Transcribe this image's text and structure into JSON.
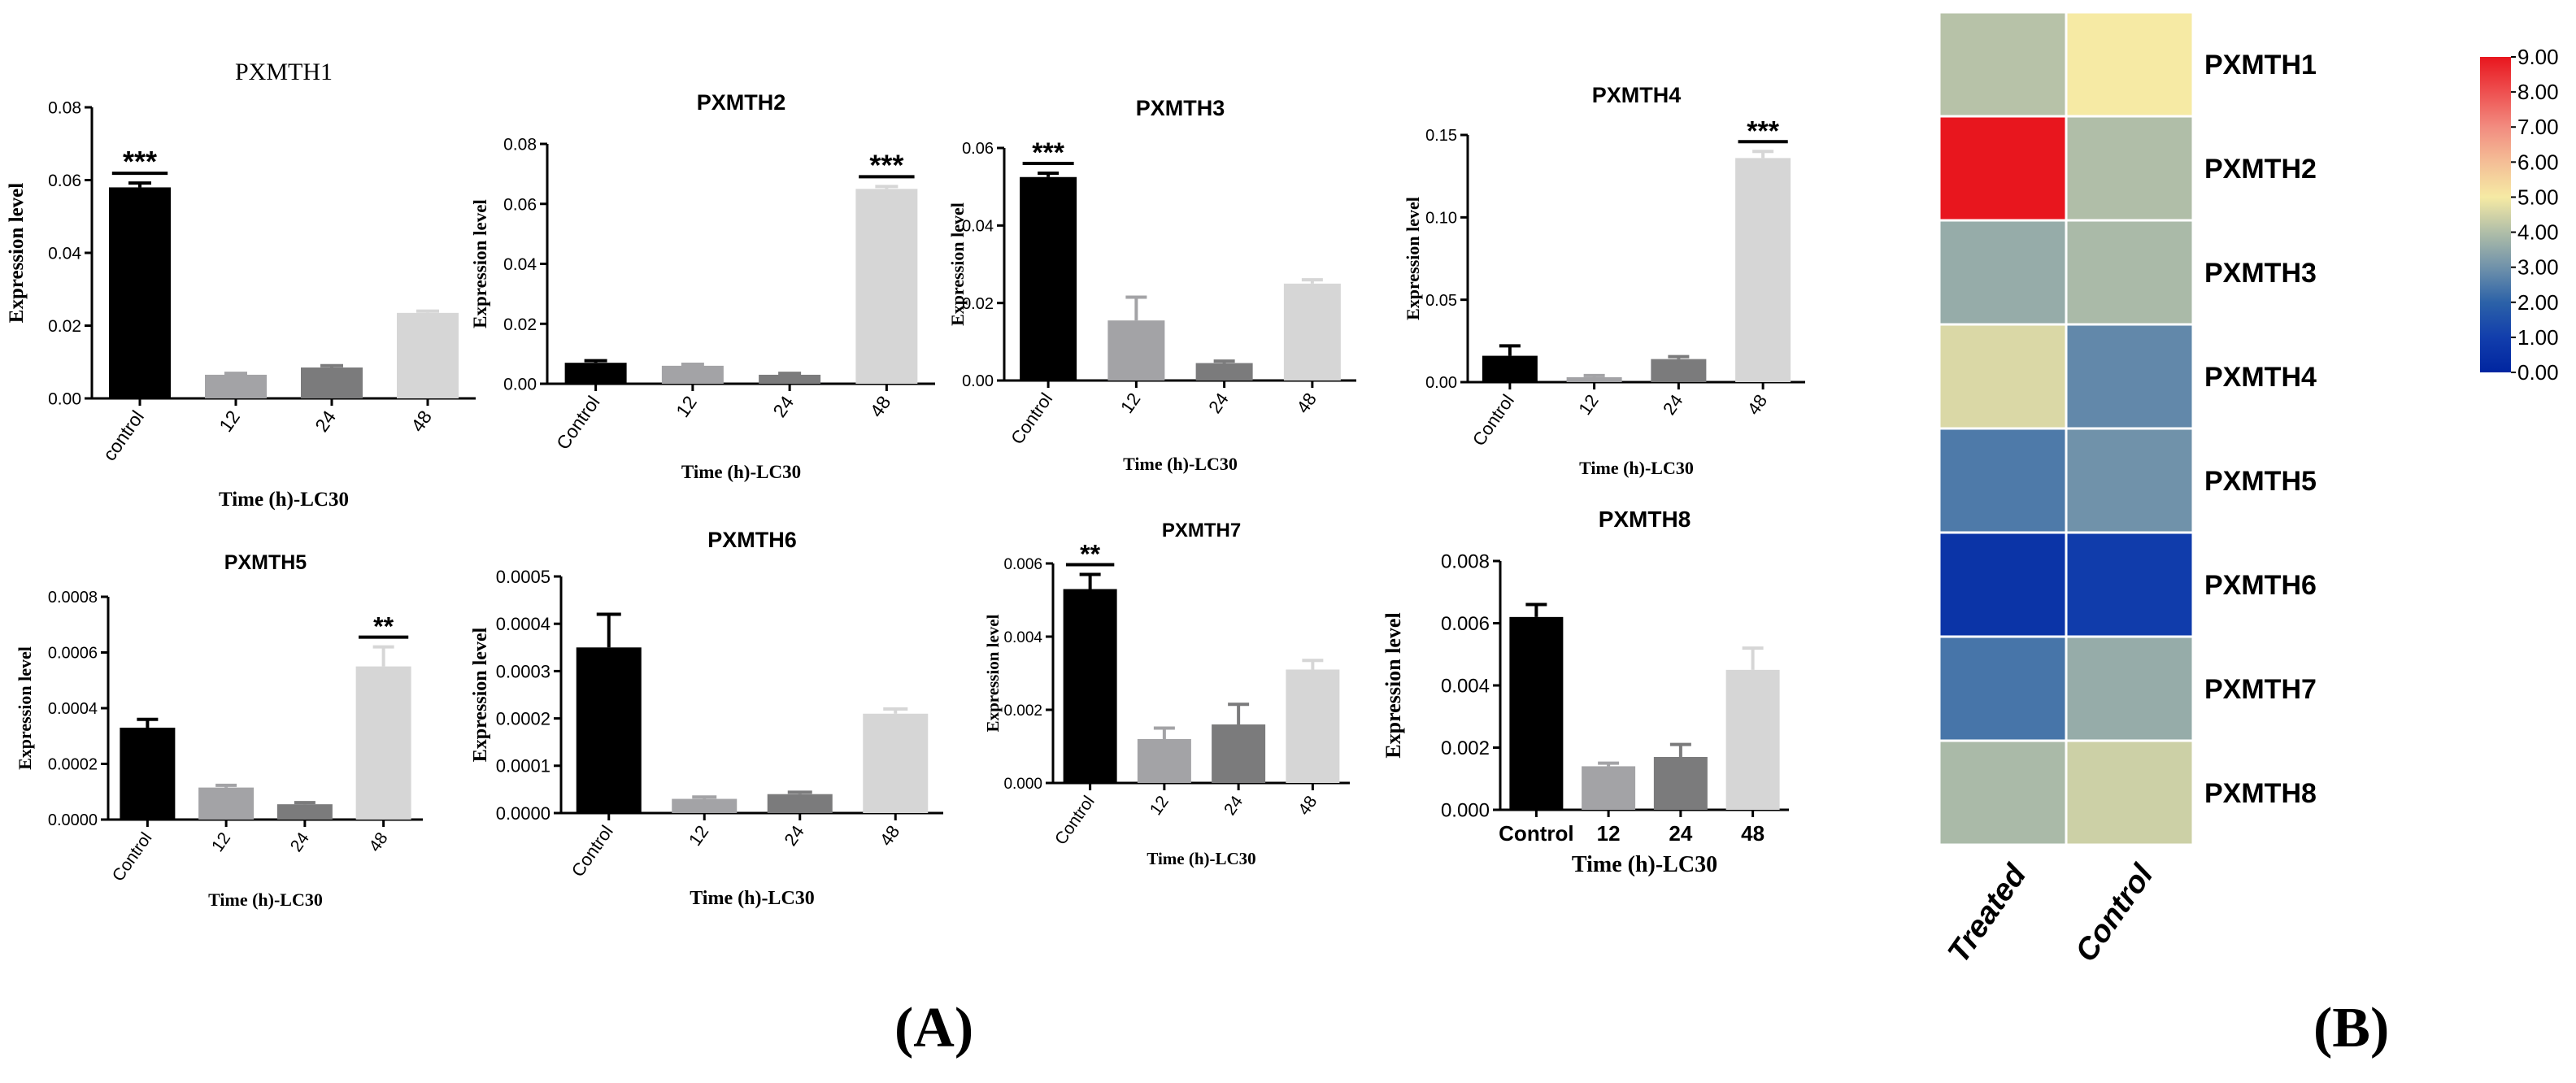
{
  "panels": {
    "a": "(A)",
    "b": "(B)"
  },
  "chart_data": [
    {
      "type": "bar",
      "title": "PXMTH1",
      "categories": [
        "control",
        "12",
        "24",
        "48"
      ],
      "values": [
        0.058,
        0.0065,
        0.0085,
        0.0235
      ],
      "errors": [
        0.0012,
        0.0004,
        0.0005,
        0.0005
      ],
      "ylim": [
        0,
        0.08
      ],
      "yticks": [
        "0.00",
        "0.02",
        "0.04",
        "0.06",
        "0.08"
      ],
      "ytick_values": [
        0,
        0.02,
        0.04,
        0.06,
        0.08
      ],
      "ylabel": "Expression level",
      "xlabel": "Time (h)-LC30",
      "significance": [
        {
          "index": 0,
          "label": "***"
        }
      ],
      "colors": [
        "#000000",
        "#a3a3a6",
        "#7b7b7c",
        "#d6d6d6"
      ]
    },
    {
      "type": "bar",
      "title": "PXMTH2",
      "categories": [
        "Control",
        "12",
        "24",
        "48"
      ],
      "values": [
        0.007,
        0.006,
        0.003,
        0.065
      ],
      "errors": [
        0.0007,
        0.0005,
        0.0005,
        0.0008
      ],
      "ylim": [
        0,
        0.08
      ],
      "yticks": [
        "0.00",
        "0.02",
        "0.04",
        "0.06",
        "0.08"
      ],
      "ytick_values": [
        0,
        0.02,
        0.04,
        0.06,
        0.08
      ],
      "ylabel": "Expression level",
      "xlabel": "Time (h)-LC30",
      "significance": [
        {
          "index": 3,
          "label": "***"
        }
      ],
      "colors": [
        "#000000",
        "#a3a3a6",
        "#7b7b7c",
        "#d6d6d6"
      ]
    },
    {
      "type": "bar",
      "title": "PXMTH3",
      "categories": [
        "Control",
        "12",
        "24",
        "48"
      ],
      "values": [
        0.0525,
        0.0155,
        0.0045,
        0.025
      ],
      "errors": [
        0.001,
        0.006,
        0.0005,
        0.001
      ],
      "ylim": [
        0,
        0.06
      ],
      "yticks": [
        "0.00",
        "0.02",
        "0.04",
        "0.06"
      ],
      "ytick_values": [
        0,
        0.02,
        0.04,
        0.06
      ],
      "ylabel": "Expression level",
      "xlabel": "Time (h)-LC30",
      "significance": [
        {
          "index": 0,
          "label": "***"
        }
      ],
      "colors": [
        "#000000",
        "#a3a3a6",
        "#7b7b7c",
        "#d6d6d6"
      ]
    },
    {
      "type": "bar",
      "title": "PXMTH4",
      "categories": [
        "Control",
        "12",
        "24",
        "48"
      ],
      "values": [
        0.016,
        0.003,
        0.014,
        0.136
      ],
      "errors": [
        0.006,
        0.001,
        0.0015,
        0.004
      ],
      "ylim": [
        0,
        0.15
      ],
      "yticks": [
        "0.00",
        "0.05",
        "0.10",
        "0.15"
      ],
      "ytick_values": [
        0,
        0.05,
        0.1,
        0.15
      ],
      "ylabel": "Expression level",
      "xlabel": "Time (h)-LC30",
      "significance": [
        {
          "index": 3,
          "label": "***"
        }
      ],
      "colors": [
        "#000000",
        "#a3a3a6",
        "#7b7b7c",
        "#d6d6d6"
      ]
    },
    {
      "type": "bar",
      "title": "PXMTH5",
      "categories": [
        "Control",
        "12",
        "24",
        "48"
      ],
      "values": [
        0.00033,
        0.000115,
        5.5e-05,
        0.00055
      ],
      "errors": [
        3e-05,
        8e-06,
        6e-06,
        7e-05
      ],
      "ylim": [
        0,
        0.0008
      ],
      "yticks": [
        "0.0000",
        "0.0002",
        "0.0004",
        "0.0006",
        "0.0008"
      ],
      "ytick_values": [
        0,
        0.0002,
        0.0004,
        0.0006,
        0.0008
      ],
      "ylabel": "Expression level",
      "xlabel": "Time (h)-LC30",
      "significance": [
        {
          "index": 3,
          "label": "**"
        }
      ],
      "colors": [
        "#000000",
        "#a3a3a6",
        "#7b7b7c",
        "#d6d6d6"
      ]
    },
    {
      "type": "bar",
      "title": "PXMTH6",
      "categories": [
        "Control",
        "12",
        "24",
        "48"
      ],
      "values": [
        0.00035,
        3e-05,
        4e-05,
        0.00021
      ],
      "errors": [
        7e-05,
        4e-06,
        4e-06,
        1e-05
      ],
      "ylim": [
        0,
        0.0005
      ],
      "yticks": [
        "0.0000",
        "0.0001",
        "0.0002",
        "0.0003",
        "0.0004",
        "0.0005"
      ],
      "ytick_values": [
        0,
        0.0001,
        0.0002,
        0.0003,
        0.0004,
        0.0005
      ],
      "ylabel": "Expression level",
      "xlabel": "Time (h)-LC30",
      "significance": [],
      "colors": [
        "#000000",
        "#a3a3a6",
        "#7b7b7c",
        "#d6d6d6"
      ]
    },
    {
      "type": "bar",
      "title": "PXMTH7",
      "categories": [
        "Control",
        "12",
        "24",
        "48"
      ],
      "values": [
        0.0053,
        0.0012,
        0.0016,
        0.0031
      ],
      "errors": [
        0.0004,
        0.0003,
        0.00055,
        0.00025
      ],
      "ylim": [
        0,
        0.006
      ],
      "yticks": [
        "0.000",
        "0.002",
        "0.004",
        "0.006"
      ],
      "ytick_values": [
        0,
        0.002,
        0.004,
        0.006
      ],
      "ylabel": "Expression level",
      "xlabel": "Time (h)-LC30",
      "significance": [
        {
          "index": 0,
          "label": "**"
        }
      ],
      "colors": [
        "#000000",
        "#a3a3a6",
        "#7b7b7c",
        "#d6d6d6"
      ]
    },
    {
      "type": "bar",
      "title": "PXMTH8",
      "categories": [
        "Control",
        "12",
        "24",
        "48"
      ],
      "values": [
        0.0062,
        0.0014,
        0.0017,
        0.0045
      ],
      "errors": [
        0.0004,
        0.0001,
        0.0004,
        0.0007
      ],
      "ylim": [
        0,
        0.008
      ],
      "yticks": [
        "0.000",
        "0.002",
        "0.004",
        "0.006",
        "0.008"
      ],
      "ytick_values": [
        0,
        0.002,
        0.004,
        0.006,
        0.008
      ],
      "ylabel": "Expression level",
      "xlabel": "Time (h)-LC30",
      "significance": [],
      "colors": [
        "#000000",
        "#a3a3a6",
        "#7b7b7c",
        "#d6d6d6"
      ]
    },
    {
      "type": "heatmap",
      "rows": [
        "PXMTH1",
        "PXMTH2",
        "PXMTH3",
        "PXMTH4",
        "PXMTH5",
        "PXMTH6",
        "PXMTH7",
        "PXMTH8"
      ],
      "columns": [
        "Treated",
        "Control"
      ],
      "values": [
        [
          4.1,
          5.0
        ],
        [
          9.0,
          4.0
        ],
        [
          3.6,
          3.9
        ],
        [
          4.6,
          2.8
        ],
        [
          2.5,
          3.0
        ],
        [
          0.6,
          0.9
        ],
        [
          2.4,
          3.6
        ],
        [
          3.9,
          4.4
        ]
      ],
      "colorbar_ticks": [
        "0.00",
        "1.00",
        "2.00",
        "3.00",
        "4.00",
        "5.00",
        "6.00",
        "7.00",
        "8.00",
        "9.00"
      ],
      "colorbar_values": [
        0,
        1,
        2,
        3,
        4,
        5,
        6,
        7,
        8,
        9
      ],
      "range": [
        0,
        9
      ]
    }
  ]
}
